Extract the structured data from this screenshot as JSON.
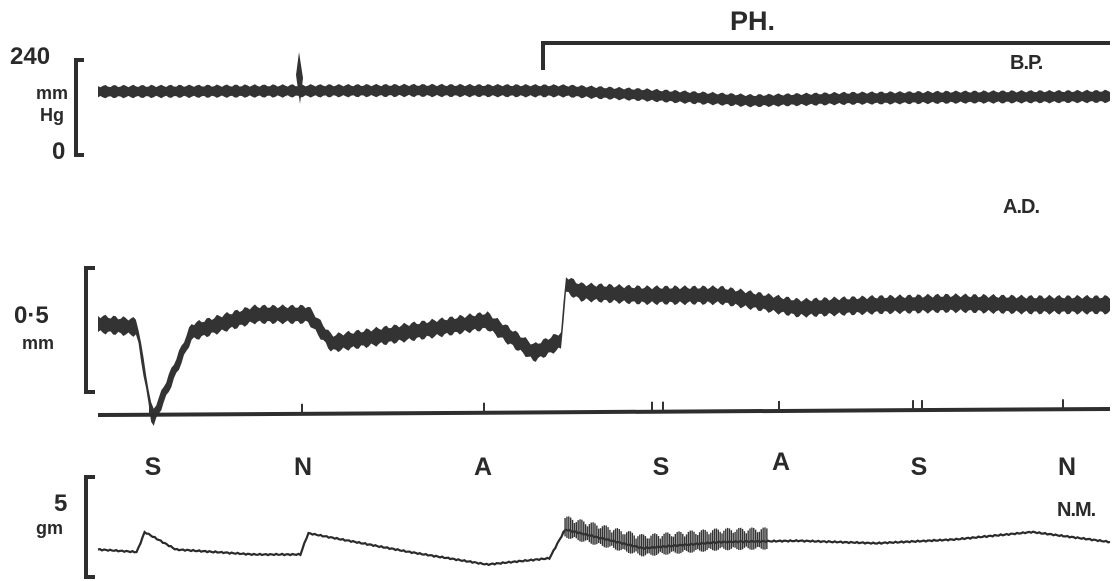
{
  "chart_data": {
    "type": "line",
    "drug_bar": {
      "label": "PH.",
      "start_at_stimulus_index": 3
    },
    "stimuli": [
      "S",
      "N",
      "A",
      "S",
      "A",
      "S",
      "N"
    ],
    "traces": [
      {
        "name": "B.P.",
        "scale_top": "240",
        "scale_unit_1": "mm",
        "scale_unit_2": "Hg",
        "scale_bottom": "0",
        "ylim": [
          0,
          240
        ],
        "x": [
          0,
          2,
          3,
          3.5,
          4.2,
          4.8,
          5.5,
          6.5
        ],
        "y": [
          160,
          163,
          162,
          152,
          137,
          143,
          146,
          148
        ],
        "band": 28
      },
      {
        "name": "A.D.",
        "scale_value": "0·5",
        "scale_unit": "mm",
        "ylim": [
          0,
          1.0
        ],
        "x": [
          0,
          0.25,
          0.35,
          0.6,
          1,
          1.35,
          1.5,
          2,
          2.5,
          2.8,
          2.98,
          3.0,
          3.1,
          3.5,
          4,
          4.5,
          5,
          5.5,
          6,
          6.5
        ],
        "y": [
          0.6,
          0.58,
          0.0,
          0.55,
          0.66,
          0.66,
          0.48,
          0.55,
          0.62,
          0.42,
          0.5,
          0.85,
          0.8,
          0.78,
          0.78,
          0.7,
          0.72,
          0.73,
          0.72,
          0.72
        ],
        "band": 0.1
      },
      {
        "name": "N.M.",
        "scale_value": "5",
        "scale_unit": "gm",
        "ylim": [
          0,
          8
        ],
        "x": [
          0,
          0.25,
          0.3,
          0.5,
          1,
          1.3,
          1.35,
          2,
          2.5,
          2.9,
          3.0,
          3.5,
          4,
          4.5,
          5,
          5.5,
          6,
          6.5
        ],
        "y": [
          2.2,
          2.0,
          3.6,
          2.2,
          1.8,
          1.8,
          3.5,
          2.0,
          1.0,
          1.5,
          3.8,
          2.3,
          2.8,
          2.9,
          2.7,
          3.0,
          3.6,
          2.8
        ]
      }
    ]
  }
}
